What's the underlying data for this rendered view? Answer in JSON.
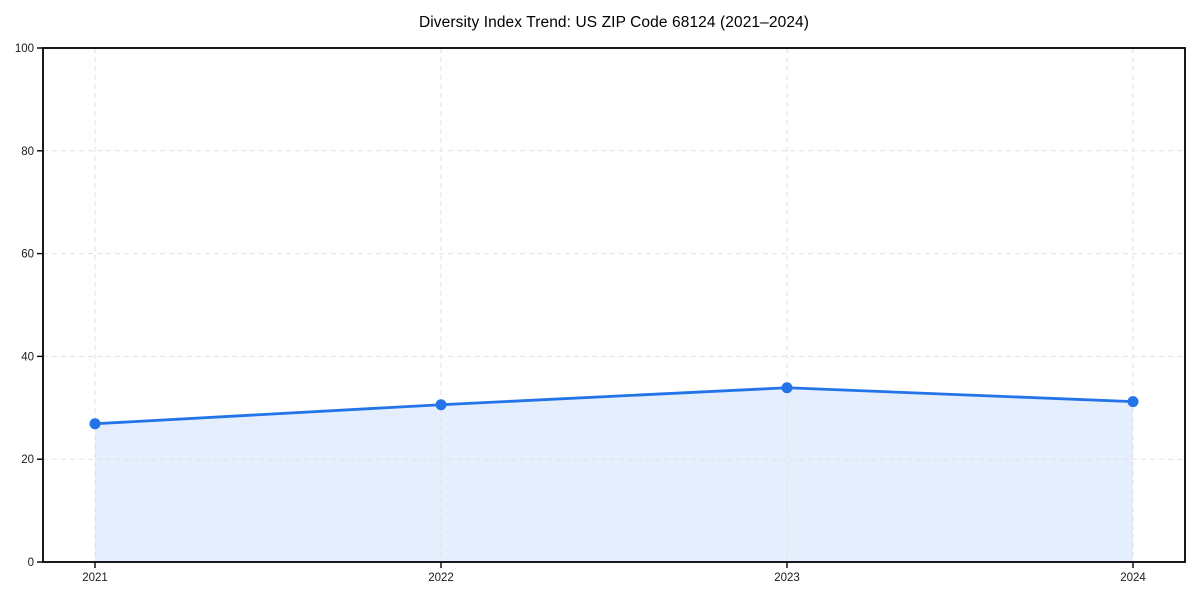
{
  "title": "Diversity Index Trend: US ZIP Code 68124 (2021–2024)",
  "chart_data": {
    "type": "line",
    "title": "Diversity Index Trend: US ZIP Code 68124 (2021–2024)",
    "x": [
      "2021",
      "2022",
      "2023",
      "2024"
    ],
    "series": [
      {
        "name": "Diversity Index",
        "values": [
          26.9,
          30.6,
          33.9,
          31.2
        ]
      }
    ],
    "xlabel": "",
    "ylabel": "",
    "ylim": [
      0,
      100
    ],
    "yticks": [
      0,
      20,
      40,
      60,
      80,
      100
    ],
    "grid": true,
    "grid_style": "dashed",
    "legend_position": "none",
    "area_fill": true,
    "markers": "circle",
    "colors": {
      "line": "#2274e8",
      "marker": "#2274e8",
      "fill": "#2274e8",
      "fill_opacity": 0.12,
      "grid": "#e1e1e1",
      "spine": "#000000",
      "tick_text": "#1a1a1a",
      "background": "#ffffff"
    }
  }
}
